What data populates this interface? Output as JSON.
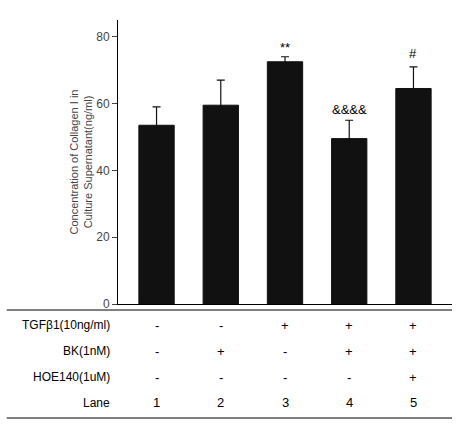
{
  "chart_data": {
    "type": "bar",
    "categories": [
      null,
      null,
      null,
      null,
      null
    ],
    "values": [
      53.5,
      59.5,
      72.5,
      49.5,
      64.5
    ],
    "errors": [
      5.5,
      7.5,
      1.5,
      5.5,
      6.5
    ],
    "color": "#111111",
    "ylabel": "Concentration of Collagen I in\nCulture Supernatant(ng/ml)",
    "ylim": [
      0,
      85
    ],
    "yticks": [
      0,
      20,
      40,
      60,
      80
    ],
    "grid": false,
    "tick_labels": "y",
    "annotations": [
      {
        "text": "**",
        "category_index": 2,
        "y": 74.0
      },
      {
        "text": "&&&&",
        "category_index": 3,
        "y": 55.5
      },
      {
        "text": "#",
        "category_index": 4,
        "y": 72.0
      }
    ],
    "table": [
      {
        "label": "TGFβ1(10ng/ml)",
        "values": [
          "-",
          "-",
          "+",
          "+",
          "+"
        ]
      },
      {
        "label": "BK(1nM)",
        "values": [
          "-",
          "+",
          "-",
          "+",
          "+"
        ]
      },
      {
        "label": "HOE140(1uM)",
        "values": [
          "-",
          "-",
          "-",
          "-",
          "+"
        ]
      },
      {
        "label": "Lane",
        "values": [
          "1",
          "2",
          "3",
          "4",
          "5"
        ]
      }
    ]
  }
}
